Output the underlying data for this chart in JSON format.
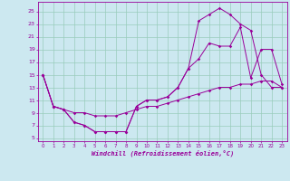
{
  "xlabel": "Windchill (Refroidissement éolien,°C)",
  "bg_color": "#cce8f0",
  "grid_color": "#99ccbb",
  "line_color": "#990099",
  "xlim": [
    -0.5,
    23.5
  ],
  "ylim": [
    4.5,
    26.5
  ],
  "yticks": [
    5,
    7,
    9,
    11,
    13,
    15,
    17,
    19,
    21,
    23,
    25
  ],
  "xticks": [
    0,
    1,
    2,
    3,
    4,
    5,
    6,
    7,
    8,
    9,
    10,
    11,
    12,
    13,
    14,
    15,
    16,
    17,
    18,
    19,
    20,
    21,
    22,
    23
  ],
  "series1_x": [
    0,
    1,
    2,
    3,
    4,
    5,
    6,
    7,
    8,
    9,
    10,
    11,
    12,
    13,
    14,
    15,
    16,
    17,
    18,
    19,
    20,
    21,
    22,
    23
  ],
  "series1_y": [
    15,
    10,
    9.5,
    7.5,
    7,
    6,
    6,
    6,
    6,
    10,
    11,
    11,
    11.5,
    13,
    16,
    17.5,
    20,
    19.5,
    19.5,
    22.5,
    14.5,
    19,
    19,
    13.5
  ],
  "series2_x": [
    0,
    1,
    2,
    3,
    4,
    5,
    6,
    7,
    8,
    9,
    10,
    11,
    12,
    13,
    14,
    15,
    16,
    17,
    18,
    19,
    20,
    21,
    22,
    23
  ],
  "series2_y": [
    15,
    10,
    9.5,
    7.5,
    7,
    6,
    6,
    6,
    6,
    10,
    11,
    11,
    11.5,
    13,
    16,
    23.5,
    24.5,
    25.5,
    24.5,
    23,
    22,
    15,
    13,
    13
  ],
  "series3_x": [
    0,
    1,
    2,
    3,
    4,
    5,
    6,
    7,
    8,
    9,
    10,
    11,
    12,
    13,
    14,
    15,
    16,
    17,
    18,
    19,
    20,
    21,
    22,
    23
  ],
  "series3_y": [
    15,
    10,
    9.5,
    9,
    9,
    8.5,
    8.5,
    8.5,
    9,
    9.5,
    10,
    10,
    10.5,
    11,
    11.5,
    12,
    12.5,
    13,
    13,
    13.5,
    13.5,
    14,
    14,
    13
  ]
}
